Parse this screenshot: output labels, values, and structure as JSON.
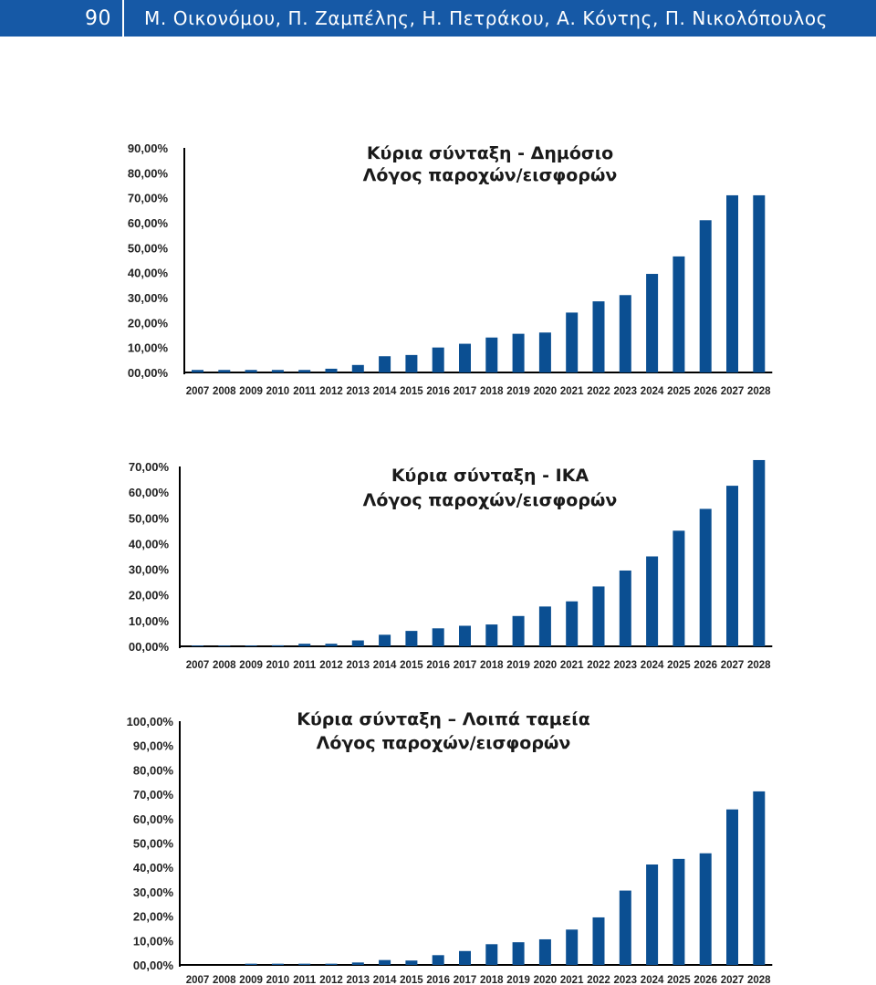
{
  "header": {
    "page_number": "90",
    "authors": "Μ. Οικονόμου, Π. Ζαμπέλης, Η. Πετράκου, Α. Κόντης, Π. Νικολόπουλος"
  },
  "colors": {
    "header_bg": "#1659a6",
    "bar": "#0b4f92",
    "axis": "#000000"
  },
  "chart_data": [
    {
      "type": "bar",
      "title": "Κύρια σύνταξη - Δημόσιο",
      "subtitle": "Λόγος παροχών/εισφορών",
      "categories": [
        "2007",
        "2008",
        "2009",
        "2010",
        "2011",
        "2012",
        "2013",
        "2014",
        "2015",
        "2016",
        "2017",
        "2018",
        "2019",
        "2020",
        "2021",
        "2022",
        "2023",
        "2024",
        "2025",
        "2026",
        "2027",
        "2028"
      ],
      "values": [
        1.0,
        1.0,
        1.0,
        1.0,
        1.0,
        1.5,
        3.0,
        6.5,
        7.0,
        10.0,
        11.5,
        14.0,
        15.5,
        16.0,
        24.0,
        28.5,
        31.0,
        39.5,
        46.5,
        61.0,
        71.0,
        71.0
      ],
      "ylim": [
        0,
        90
      ],
      "yticks": [
        "00,00%",
        "10,00%",
        "20,00%",
        "30,00%",
        "40,00%",
        "50,00%",
        "60,00%",
        "70,00%",
        "80,00%",
        "90,00%"
      ],
      "grid": false
    },
    {
      "type": "bar",
      "title": "Κύρια σύνταξη - ΙΚΑ",
      "subtitle": "Λόγος παροχών/εισφορών",
      "categories": [
        "2007",
        "2008",
        "2009",
        "2010",
        "2011",
        "2012",
        "2013",
        "2014",
        "2015",
        "2016",
        "2017",
        "2018",
        "2019",
        "2020",
        "2021",
        "2022",
        "2023",
        "2024",
        "2025",
        "2026",
        "2027",
        "2028"
      ],
      "values": [
        0.3,
        0.3,
        0.3,
        0.4,
        1.0,
        1.0,
        2.3,
        4.5,
        6.0,
        7.0,
        8.0,
        8.5,
        11.8,
        15.5,
        17.5,
        23.3,
        29.5,
        35.0,
        45.0,
        53.5,
        62.5,
        72.5
      ],
      "ylim": [
        0,
        70
      ],
      "yticks": [
        "00,00%",
        "10,00%",
        "20,00%",
        "30,00%",
        "40,00%",
        "50,00%",
        "60,00%",
        "70,00%"
      ],
      "grid": false
    },
    {
      "type": "bar",
      "title": "Κύρια σύνταξη – Λοιπά ταμεία",
      "subtitle": "Λόγος παροχών/εισφορών",
      "categories": [
        "2007",
        "2008",
        "2009",
        "2010",
        "2011",
        "2012",
        "2013",
        "2014",
        "2015",
        "2016",
        "2017",
        "2018",
        "2019",
        "2020",
        "2021",
        "2022",
        "2023",
        "2024",
        "2025",
        "2026",
        "2027",
        "2028"
      ],
      "values": [
        0.0,
        0.0,
        0.5,
        0.5,
        0.5,
        0.5,
        1.0,
        2.0,
        1.8,
        4.0,
        5.7,
        8.5,
        9.3,
        10.5,
        14.5,
        19.5,
        30.5,
        41.2,
        43.5,
        45.8,
        63.8,
        71.2
      ],
      "ylim": [
        0,
        100
      ],
      "yticks": [
        "00,00%",
        "10,00%",
        "20,00%",
        "30,00%",
        "40,00%",
        "50,00%",
        "60,00%",
        "70,00%",
        "80,00%",
        "90,00%",
        "100,00%"
      ],
      "grid": false
    }
  ]
}
